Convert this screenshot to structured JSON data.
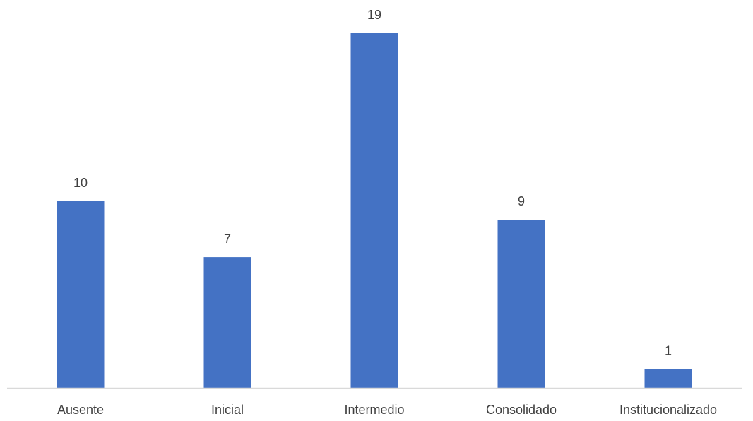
{
  "chart_data": {
    "type": "bar",
    "title": "",
    "xlabel": "",
    "ylabel": "",
    "categories": [
      "Ausente",
      "Inicial",
      "Intermedio",
      "Consolidado",
      "Institucionalizado"
    ],
    "values": [
      10,
      7,
      19,
      9,
      1
    ],
    "ylim": [
      0,
      19
    ],
    "grid": false,
    "legend": "none",
    "data_labels": true,
    "colors": {
      "bar": "#4472C4",
      "axis": "#D9D9D9",
      "text": "#404040"
    }
  }
}
